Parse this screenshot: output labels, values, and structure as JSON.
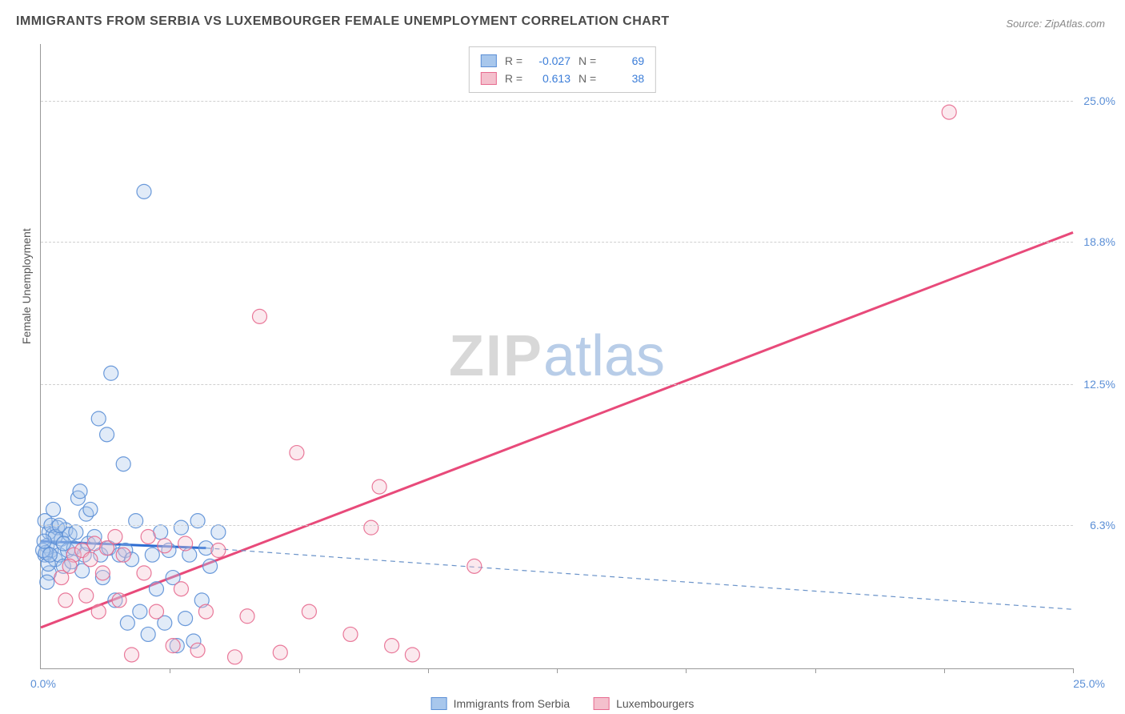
{
  "title": "IMMIGRANTS FROM SERBIA VS LUXEMBOURGER FEMALE UNEMPLOYMENT CORRELATION CHART",
  "source": "Source: ZipAtlas.com",
  "watermark_zip": "ZIP",
  "watermark_atlas": "atlas",
  "y_axis_label": "Female Unemployment",
  "chart": {
    "type": "scatter",
    "xlim": [
      0,
      25
    ],
    "ylim": [
      0,
      27.5
    ],
    "x_origin_label": "0.0%",
    "x_max_label": "25.0%",
    "y_ticks": [
      {
        "value": 6.3,
        "label": "6.3%"
      },
      {
        "value": 12.5,
        "label": "12.5%"
      },
      {
        "value": 18.8,
        "label": "18.8%"
      },
      {
        "value": 25.0,
        "label": "25.0%"
      }
    ],
    "x_tick_positions": [
      3.125,
      6.25,
      9.375,
      12.5,
      15.625,
      18.75,
      21.875,
      25
    ],
    "background_color": "#ffffff",
    "grid_color": "#d0d0d0",
    "marker_radius": 9,
    "marker_fill_opacity": 0.35,
    "marker_stroke_opacity": 0.9,
    "marker_stroke_width": 1.2,
    "series": [
      {
        "name": "Immigrants from Serbia",
        "color_fill": "#a8c7ec",
        "color_stroke": "#5b8fd6",
        "R": "-0.027",
        "N": "69",
        "trend": {
          "x1": 0,
          "y1": 5.6,
          "x2": 4.0,
          "y2": 5.3,
          "x2_dash": 25.0,
          "y2_dash": 2.6,
          "solid_color": "#2d6cd1",
          "solid_width": 3,
          "dash_color": "#6a93c9",
          "dash_width": 1.2,
          "dash_pattern": "6,5"
        },
        "points": [
          [
            0.1,
            5.0
          ],
          [
            0.15,
            5.4
          ],
          [
            0.2,
            6.0
          ],
          [
            0.25,
            5.2
          ],
          [
            0.3,
            5.9
          ],
          [
            0.35,
            4.8
          ],
          [
            0.4,
            6.2
          ],
          [
            0.45,
            5.0
          ],
          [
            0.5,
            5.7
          ],
          [
            0.55,
            4.5
          ],
          [
            0.6,
            6.1
          ],
          [
            0.65,
            5.2
          ],
          [
            0.7,
            5.9
          ],
          [
            0.75,
            4.7
          ],
          [
            0.8,
            5.3
          ],
          [
            0.85,
            6.0
          ],
          [
            0.9,
            7.5
          ],
          [
            0.95,
            7.8
          ],
          [
            1.0,
            4.3
          ],
          [
            1.05,
            5.0
          ],
          [
            1.1,
            6.8
          ],
          [
            1.15,
            5.5
          ],
          [
            1.2,
            7.0
          ],
          [
            1.3,
            5.8
          ],
          [
            1.4,
            11.0
          ],
          [
            1.45,
            5.0
          ],
          [
            1.5,
            4.0
          ],
          [
            1.6,
            10.3
          ],
          [
            1.65,
            5.3
          ],
          [
            1.7,
            13.0
          ],
          [
            1.8,
            3.0
          ],
          [
            1.9,
            5.0
          ],
          [
            2.0,
            9.0
          ],
          [
            2.05,
            5.2
          ],
          [
            2.1,
            2.0
          ],
          [
            2.2,
            4.8
          ],
          [
            2.3,
            6.5
          ],
          [
            2.4,
            2.5
          ],
          [
            2.5,
            21.0
          ],
          [
            2.6,
            1.5
          ],
          [
            2.7,
            5.0
          ],
          [
            2.8,
            3.5
          ],
          [
            2.9,
            6.0
          ],
          [
            3.0,
            2.0
          ],
          [
            3.1,
            5.2
          ],
          [
            3.2,
            4.0
          ],
          [
            3.3,
            1.0
          ],
          [
            3.4,
            6.2
          ],
          [
            3.5,
            2.2
          ],
          [
            3.6,
            5.0
          ],
          [
            3.7,
            1.2
          ],
          [
            3.8,
            6.5
          ],
          [
            3.9,
            3.0
          ],
          [
            4.0,
            5.3
          ],
          [
            4.1,
            4.5
          ],
          [
            4.3,
            6.0
          ],
          [
            0.1,
            6.5
          ],
          [
            0.2,
            4.2
          ],
          [
            0.3,
            7.0
          ],
          [
            0.15,
            3.8
          ],
          [
            0.25,
            6.3
          ],
          [
            0.12,
            5.1
          ],
          [
            0.18,
            4.6
          ],
          [
            0.35,
            5.8
          ],
          [
            0.45,
            6.3
          ],
          [
            0.55,
            5.5
          ],
          [
            0.05,
            5.2
          ],
          [
            0.08,
            5.6
          ],
          [
            0.22,
            5.0
          ]
        ]
      },
      {
        "name": "Luxembourgers",
        "color_fill": "#f4c0cd",
        "color_stroke": "#e76a8f",
        "R": "0.613",
        "N": "38",
        "trend": {
          "x1": 0,
          "y1": 1.8,
          "x2": 25.0,
          "y2": 19.2,
          "solid_color": "#e84a7a",
          "solid_width": 3
        },
        "points": [
          [
            0.5,
            4.0
          ],
          [
            0.6,
            3.0
          ],
          [
            0.8,
            5.0
          ],
          [
            1.0,
            5.2
          ],
          [
            1.1,
            3.2
          ],
          [
            1.3,
            5.5
          ],
          [
            1.4,
            2.5
          ],
          [
            1.5,
            4.2
          ],
          [
            1.6,
            5.3
          ],
          [
            1.8,
            5.8
          ],
          [
            1.9,
            3.0
          ],
          [
            2.0,
            5.0
          ],
          [
            2.2,
            0.6
          ],
          [
            2.5,
            4.2
          ],
          [
            2.6,
            5.8
          ],
          [
            2.8,
            2.5
          ],
          [
            3.0,
            5.4
          ],
          [
            3.2,
            1.0
          ],
          [
            3.4,
            3.5
          ],
          [
            3.5,
            5.5
          ],
          [
            3.8,
            0.8
          ],
          [
            4.0,
            2.5
          ],
          [
            4.3,
            5.2
          ],
          [
            4.7,
            0.5
          ],
          [
            5.0,
            2.3
          ],
          [
            5.3,
            15.5
          ],
          [
            5.8,
            0.7
          ],
          [
            6.2,
            9.5
          ],
          [
            6.5,
            2.5
          ],
          [
            7.5,
            1.5
          ],
          [
            8.0,
            6.2
          ],
          [
            8.2,
            8.0
          ],
          [
            8.5,
            1.0
          ],
          [
            9.0,
            0.6
          ],
          [
            10.5,
            4.5
          ],
          [
            22.0,
            24.5
          ],
          [
            0.7,
            4.5
          ],
          [
            1.2,
            4.8
          ]
        ]
      }
    ]
  },
  "legend_top": {
    "r_label": "R =",
    "n_label": "N ="
  },
  "legend_bottom": {
    "items": [
      "Immigrants from Serbia",
      "Luxembourgers"
    ]
  }
}
